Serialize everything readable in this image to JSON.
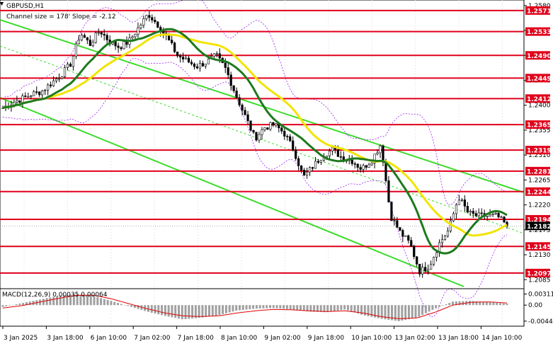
{
  "chart_data": [
    {
      "type": "candlestick",
      "symbol_title": "GBPUSD,H1",
      "channel_info": "Channel size = 178' Slope = -2.12",
      "ylim": [
        1.207,
        1.259
      ],
      "y_ticks": [
        1.258,
        1.2535,
        1.249,
        1.2445,
        1.24,
        1.2355,
        1.231,
        1.2265,
        1.222,
        1.2175,
        1.213,
        1.2085
      ],
      "current_price": {
        "label": "1.2182",
        "value": 1.2182
      },
      "horizontal_levels": [
        {
          "label": "1.2571",
          "value": 1.2571
        },
        {
          "label": "1.2533",
          "value": 1.2533
        },
        {
          "label": "1.2490",
          "value": 1.249
        },
        {
          "label": "1.2449",
          "value": 1.2449
        },
        {
          "label": "1.2412",
          "value": 1.2412
        },
        {
          "label": "1.2365",
          "value": 1.2365
        },
        {
          "label": "1.2319",
          "value": 1.2319
        },
        {
          "label": "1.2281",
          "value": 1.2281
        },
        {
          "label": "1.2244",
          "value": 1.2244
        },
        {
          "label": "1.2194",
          "value": 1.2194
        },
        {
          "label": "1.2145",
          "value": 1.2145
        },
        {
          "label": "1.2097",
          "value": 1.2097
        }
      ],
      "x_labels": [
        "3 Jan 2025",
        "3 Jan 18:00",
        "6 Jan 10:00",
        "7 Jan 02:00",
        "7 Jan 18:00",
        "8 Jan 10:00",
        "9 Jan 02:00",
        "9 Jan 18:00",
        "10 Jan 10:00",
        "13 Jan 02:00",
        "13 Jan 18:00",
        "14 Jan 10:00"
      ],
      "price_path": [
        1.2395,
        1.2405,
        1.2412,
        1.242,
        1.2425,
        1.244,
        1.2455,
        1.2475,
        1.253,
        1.251,
        1.2535,
        1.2515,
        1.2505,
        1.2515,
        1.254,
        1.2565,
        1.2545,
        1.252,
        1.249,
        1.248,
        1.247,
        1.2478,
        1.249,
        1.2465,
        1.242,
        1.238,
        1.234,
        1.236,
        1.2365,
        1.235,
        1.232,
        1.227,
        1.229,
        1.231,
        1.232,
        1.2305,
        1.23,
        1.2285,
        1.23,
        1.233,
        1.22,
        1.217,
        1.215,
        1.21,
        1.211,
        1.215,
        1.2175,
        1.2235,
        1.2205,
        1.22,
        1.22,
        1.22,
        1.2182
      ],
      "colors": {
        "level_line": "#e0001b",
        "level_label_bg": "#e0001b",
        "ma_yellow": "#f2e400",
        "ma_green": "#1d7a1d",
        "channel": "#3cdc2a",
        "candle": "#000000",
        "bollinger": "#a020f0"
      },
      "grid": true
    },
    {
      "type": "bar",
      "title": "MACD(12,26,9) 0.00035 0.00064",
      "y_ticks": [
        {
          "label": "0.00311",
          "value": 0.00311
        },
        {
          "label": "0.00",
          "value": 0.0
        },
        {
          "label": "-0.00448",
          "value": -0.00448
        }
      ],
      "ylim": [
        -0.0055,
        0.0042
      ],
      "histogram_path": [
        -0.0005,
        0.0005,
        0.0015,
        0.0025,
        0.0031,
        0.0026,
        0.0012,
        -0.0003,
        -0.0018,
        -0.003,
        -0.004,
        -0.0035,
        -0.0028,
        -0.0015,
        -0.001,
        -0.0008,
        -0.0012,
        -0.0018,
        -0.002,
        -0.0012,
        -0.0028,
        -0.0038,
        -0.0045,
        -0.0035,
        -0.001,
        0.001,
        0.0012,
        0.0008,
        0.0004
      ],
      "signal_path": [
        -0.0008,
        -0.0002,
        0.0008,
        0.0018,
        0.0027,
        0.0028,
        0.0018,
        0.0004,
        -0.001,
        -0.0022,
        -0.003,
        -0.0032,
        -0.003,
        -0.0022,
        -0.0016,
        -0.0012,
        -0.0013,
        -0.0016,
        -0.0018,
        -0.0016,
        -0.0022,
        -0.0032,
        -0.0038,
        -0.0036,
        -0.002,
        0.0,
        0.0008,
        0.0009,
        0.0006
      ],
      "colors": {
        "histogram": "#a0a0a0",
        "signal": "#e00000"
      }
    }
  ]
}
